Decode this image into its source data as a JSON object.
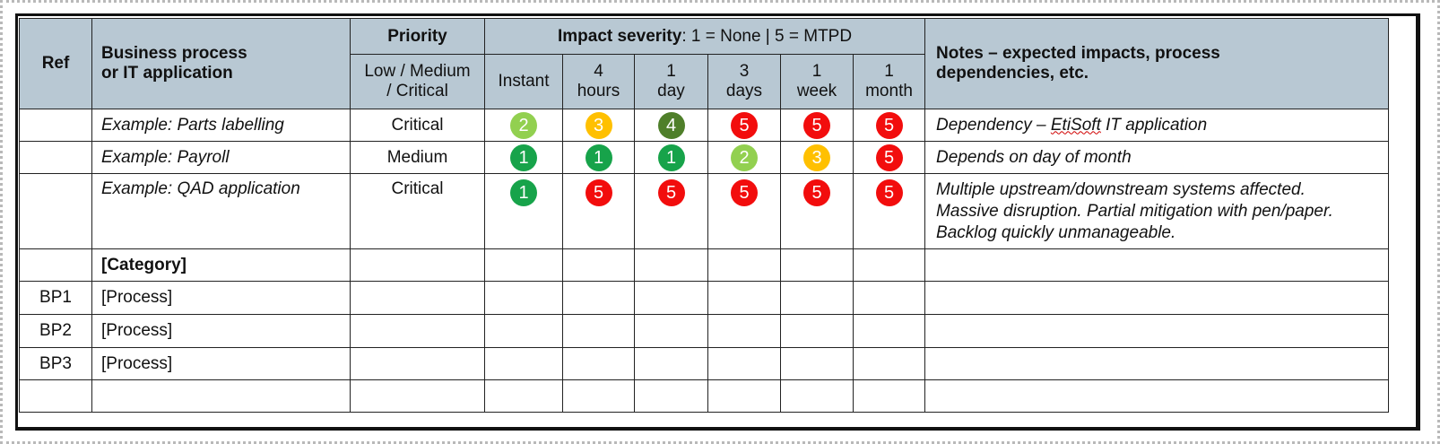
{
  "header": {
    "ref": "Ref",
    "process": [
      "Business process",
      "or IT application"
    ],
    "priority": "Priority",
    "priority_sub": [
      "Low / Medium",
      "/ Critical"
    ],
    "impact_bold": "Impact severity",
    "impact_rest": ": 1 = None | 5 = MTPD",
    "notes": [
      "Notes – expected impacts, process",
      "dependencies, etc."
    ],
    "periods": [
      [
        "Instant"
      ],
      [
        "4",
        "hours"
      ],
      [
        "1",
        "day"
      ],
      [
        "3",
        "days"
      ],
      [
        "1",
        "week"
      ],
      [
        "1",
        "month"
      ]
    ]
  },
  "severity_colors": {
    "1": "#17a34a",
    "2": "#92d050",
    "3": "#ffc000",
    "4": "#4f7f2a",
    "5": "#f20d0d"
  },
  "examples": [
    {
      "process": "Example: Parts labelling",
      "priority": "Critical",
      "severity": [
        2,
        3,
        4,
        5,
        5,
        5
      ],
      "notes_pre": "Dependency – ",
      "notes_flag": "EtiSoft",
      "notes_post": " IT application"
    },
    {
      "process": "Example: Payroll",
      "priority": "Medium",
      "severity": [
        1,
        1,
        1,
        2,
        3,
        5
      ],
      "notes": "Depends on day of month"
    },
    {
      "process": "Example: QAD application",
      "priority": "Critical",
      "severity": [
        1,
        5,
        5,
        5,
        5,
        5
      ],
      "notes_lines": [
        "Multiple upstream/downstream systems affected.",
        "Massive disruption. Partial mitigation with pen/paper.",
        "Backlog quickly unmanageable."
      ]
    }
  ],
  "category": "[Category]",
  "rows": [
    {
      "ref": "BP1",
      "process": "[Process]"
    },
    {
      "ref": "BP2",
      "process": "[Process]"
    },
    {
      "ref": "BP3",
      "process": "[Process]"
    }
  ]
}
